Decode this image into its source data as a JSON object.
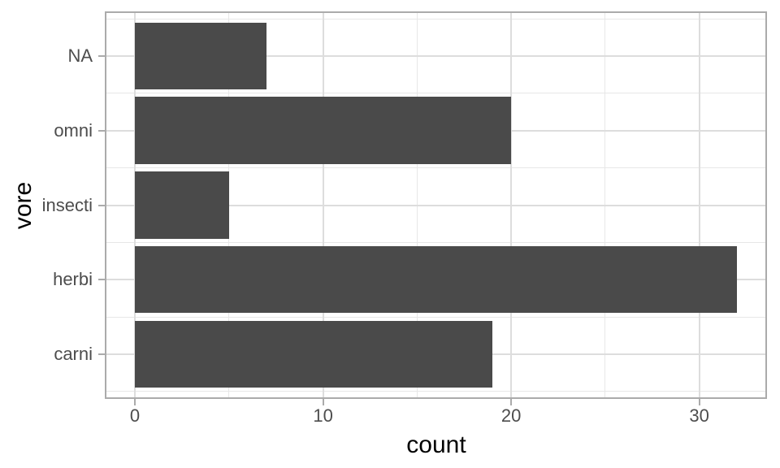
{
  "chart_data": {
    "type": "bar",
    "orientation": "horizontal",
    "title": "",
    "xlabel": "count",
    "ylabel": "vore",
    "categories_top_to_bottom": [
      "NA",
      "omni",
      "insecti",
      "herbi",
      "carni"
    ],
    "values": [
      7,
      20,
      5,
      32,
      19
    ],
    "x_axis": {
      "ticks_major": [
        0,
        10,
        20,
        30
      ],
      "ticks_minor": [
        5,
        15,
        25
      ],
      "limits": [
        -1.6,
        33.6
      ]
    },
    "y_axis": {
      "band_padding": 0.6,
      "bar_rel_width": 0.9
    },
    "grid": "major+minor",
    "legend": "none",
    "colors": {
      "bar_fill": "#4a4a4a",
      "grid_major": "#dddddd",
      "grid_minor": "#e7e7e7",
      "panel_border": "#ababab",
      "axis_tick": "#ababab",
      "axis_text": "#4d4d4d",
      "axis_title": "#000000",
      "background": "#ffffff"
    }
  }
}
